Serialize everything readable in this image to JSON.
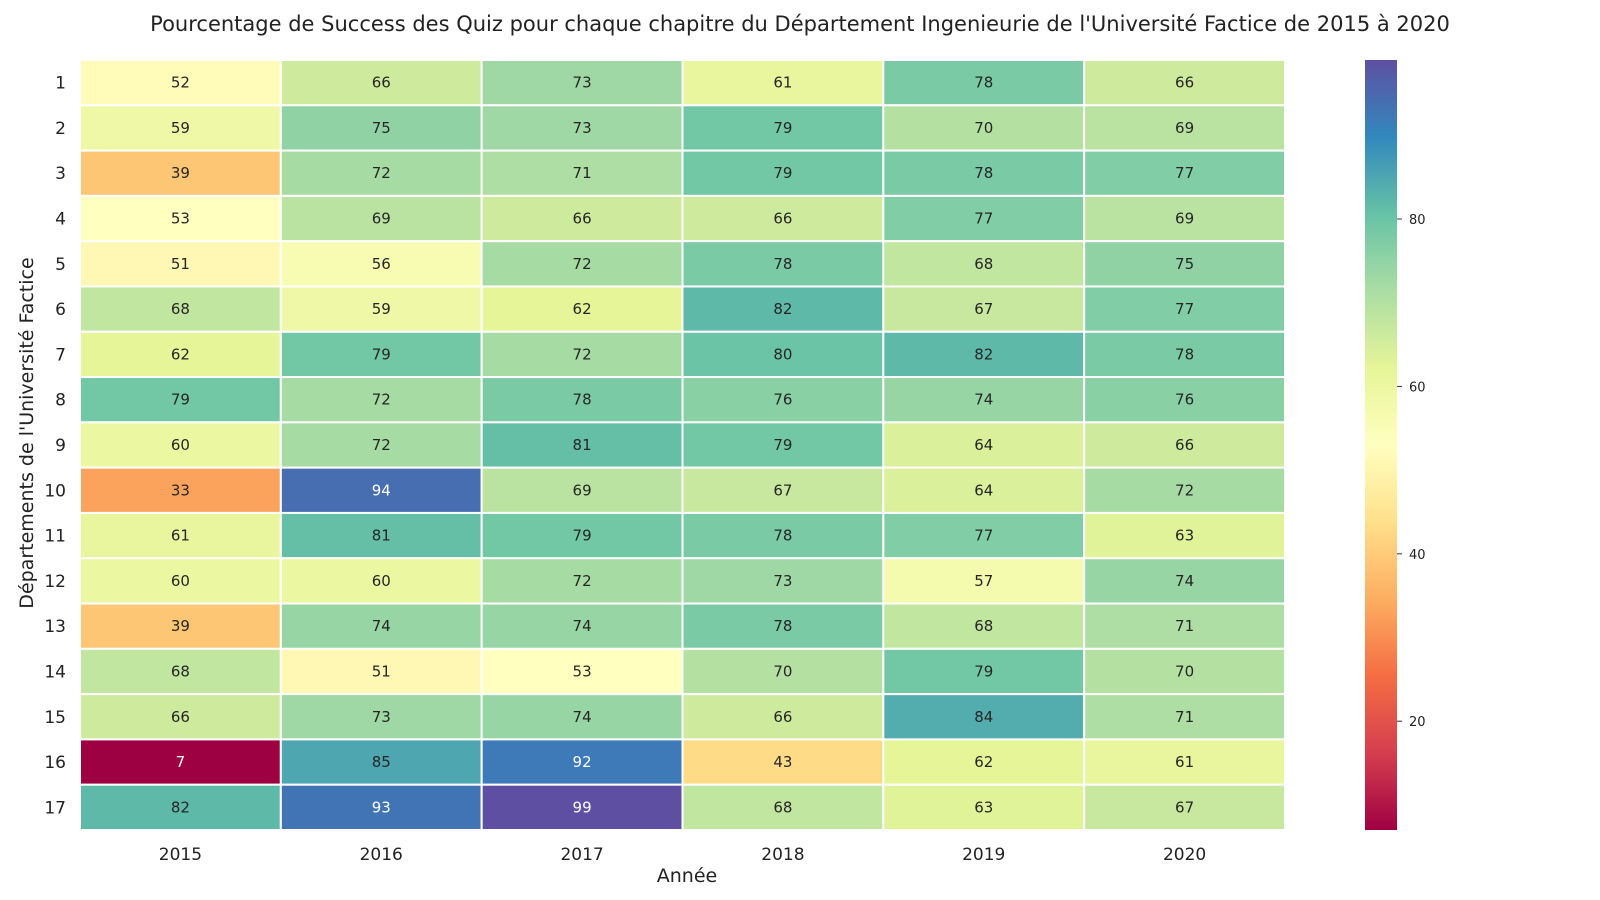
{
  "chart_data": {
    "type": "heatmap",
    "title": "Pourcentage de Success des Quiz pour chaque chapitre du Département Ingenieurie de l'Université Factice de 2015 à 2020",
    "xlabel": "Année",
    "ylabel": "Départements de l'Université Factice",
    "x": [
      "2015",
      "2016",
      "2017",
      "2018",
      "2019",
      "2020"
    ],
    "y": [
      "1",
      "2",
      "3",
      "4",
      "5",
      "6",
      "7",
      "8",
      "9",
      "10",
      "11",
      "12",
      "13",
      "14",
      "15",
      "16",
      "17"
    ],
    "values": [
      [
        52,
        66,
        73,
        61,
        78,
        66
      ],
      [
        59,
        75,
        73,
        79,
        70,
        69
      ],
      [
        39,
        72,
        71,
        79,
        78,
        77
      ],
      [
        53,
        69,
        66,
        66,
        77,
        69
      ],
      [
        51,
        56,
        72,
        78,
        68,
        75
      ],
      [
        68,
        59,
        62,
        82,
        67,
        77
      ],
      [
        62,
        79,
        72,
        80,
        82,
        78
      ],
      [
        79,
        72,
        78,
        76,
        74,
        76
      ],
      [
        60,
        72,
        81,
        79,
        64,
        66
      ],
      [
        33,
        94,
        69,
        67,
        64,
        72
      ],
      [
        61,
        81,
        79,
        78,
        77,
        63
      ],
      [
        60,
        60,
        72,
        73,
        57,
        74
      ],
      [
        39,
        74,
        74,
        78,
        68,
        71
      ],
      [
        68,
        51,
        53,
        70,
        79,
        70
      ],
      [
        66,
        73,
        74,
        66,
        84,
        71
      ],
      [
        7,
        85,
        92,
        43,
        62,
        61
      ],
      [
        82,
        93,
        99,
        68,
        63,
        67
      ]
    ],
    "colormap": "Spectral",
    "vmin": 7,
    "vmax": 99,
    "colorbar_ticks": [
      20,
      40,
      60,
      80
    ],
    "annotations": true,
    "grid": false
  }
}
